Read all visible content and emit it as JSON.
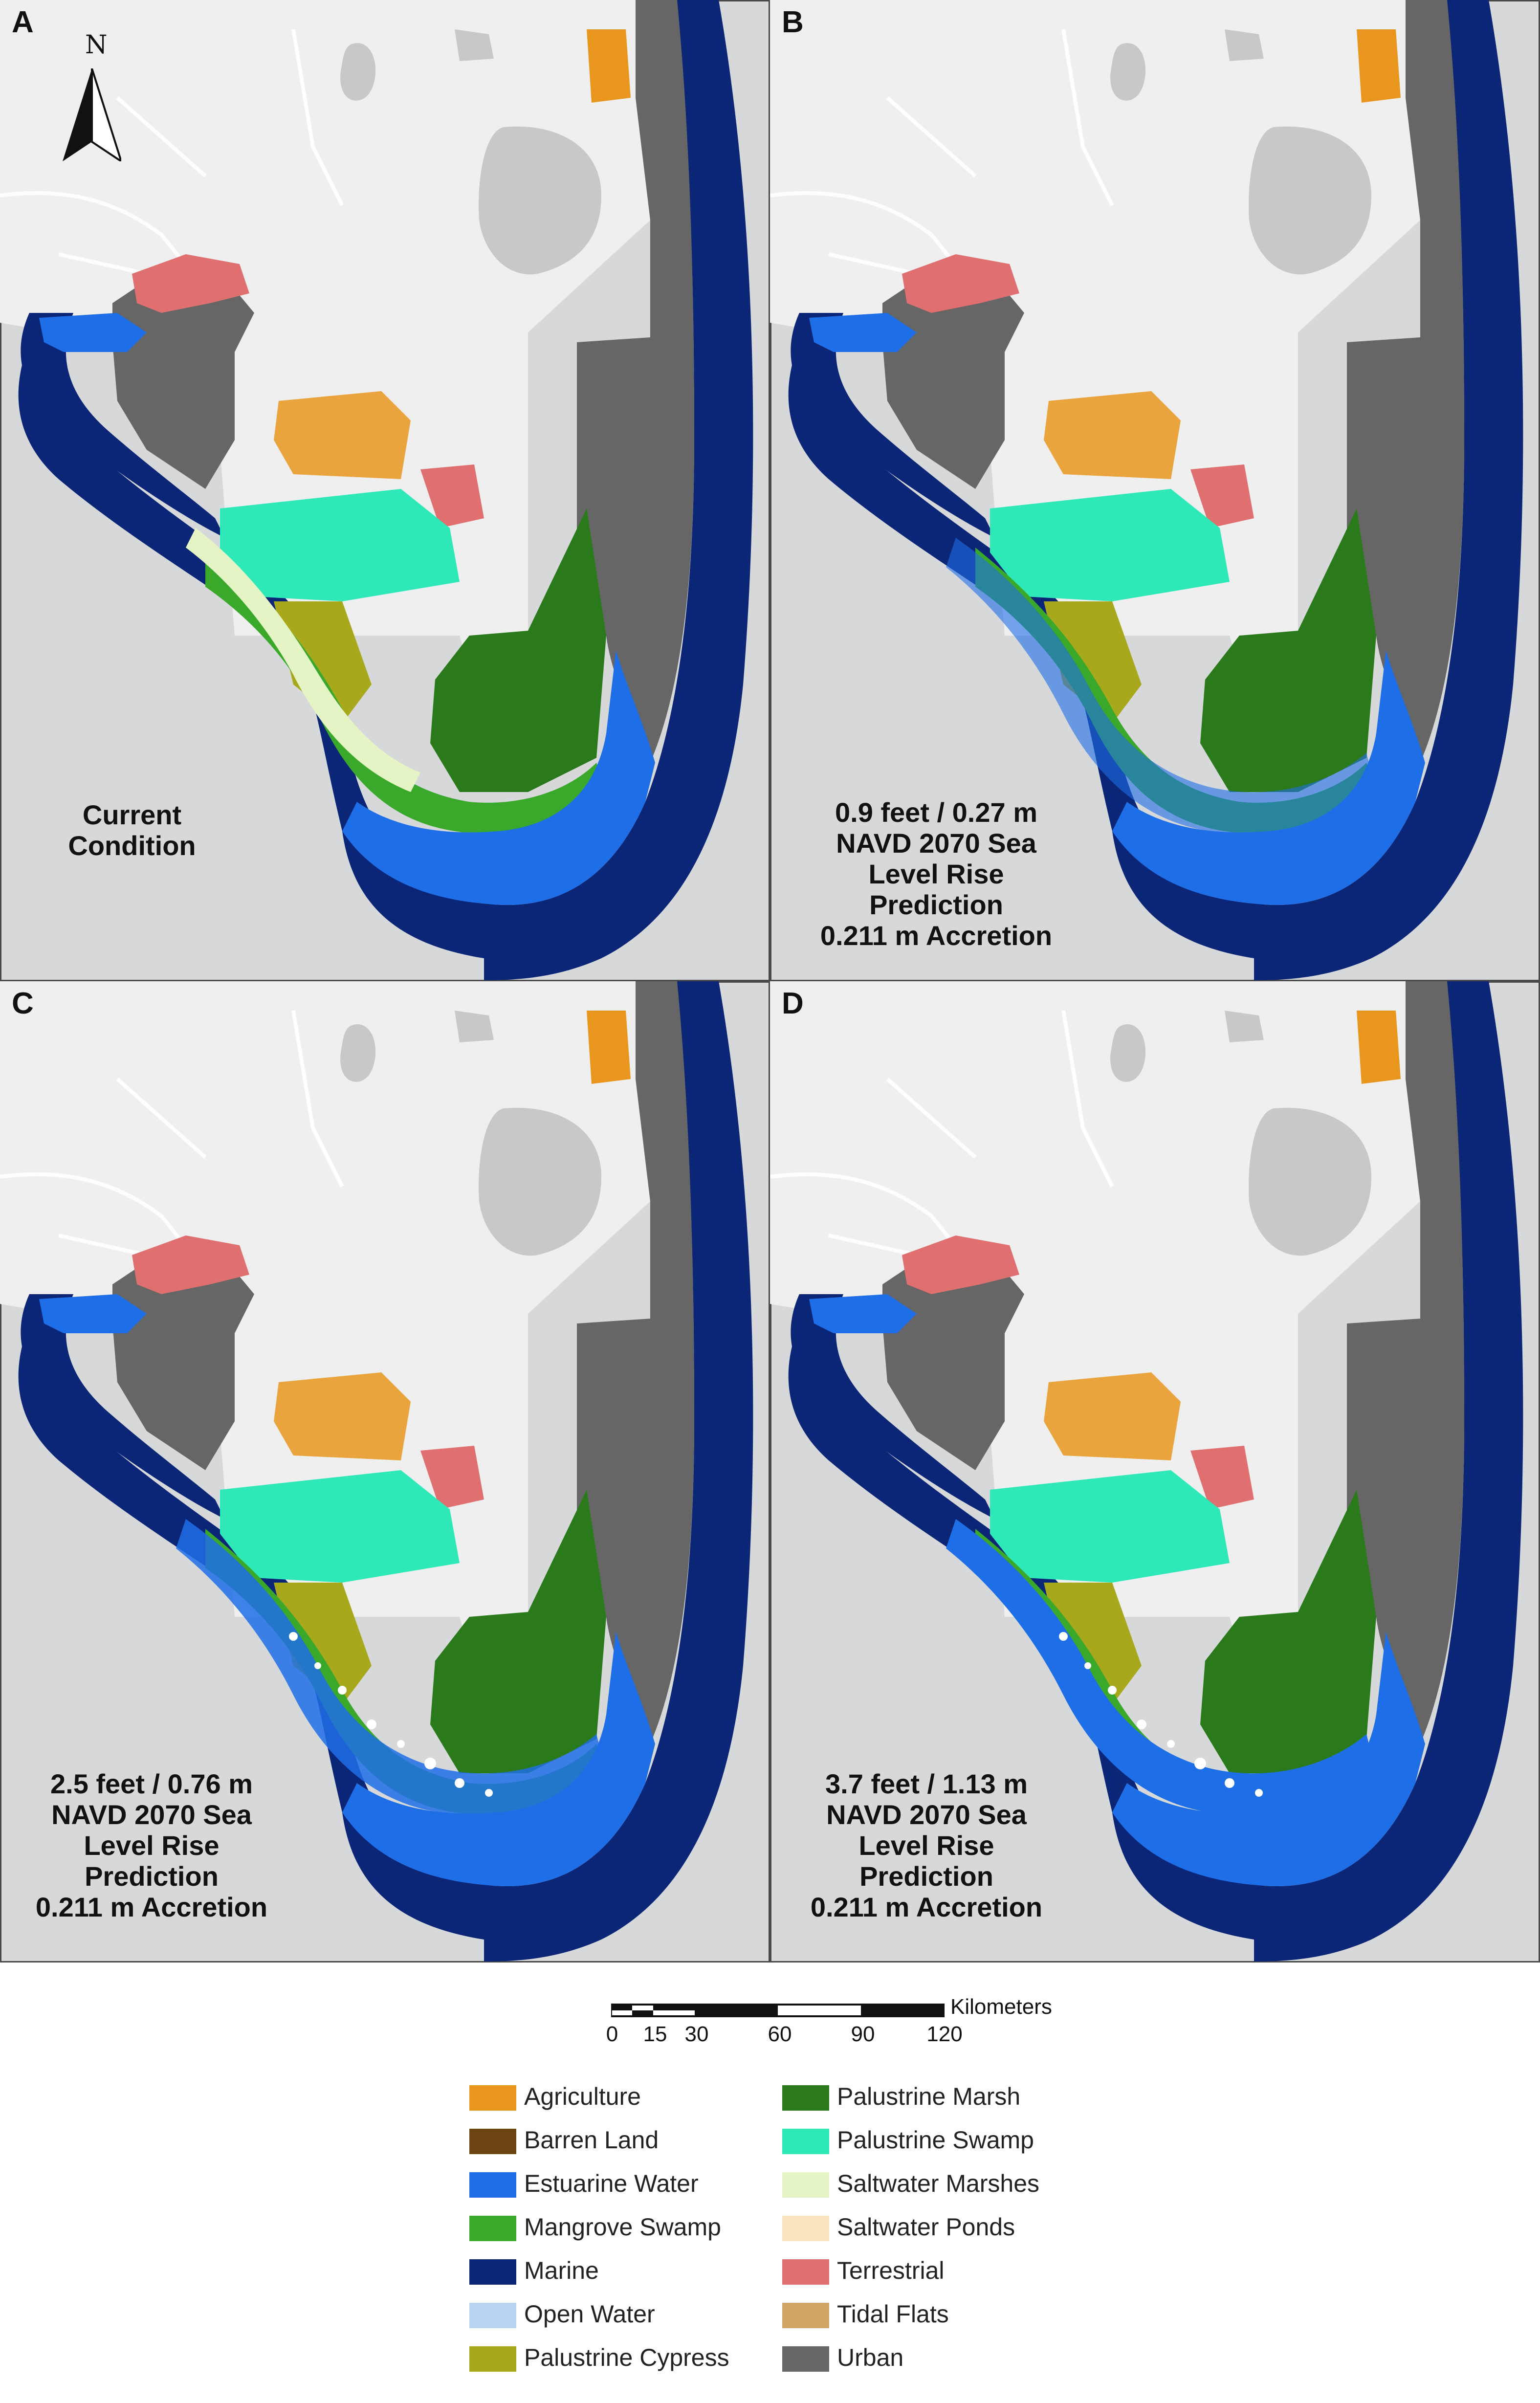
{
  "panels": [
    {
      "label": "A",
      "caption": "Current\nCondition",
      "scenario": "current"
    },
    {
      "label": "B",
      "caption": "0.9 feet / 0.27 m\nNAVD 2070 Sea\nLevel Rise\nPrediction\n0.211 m Accretion",
      "scenario": "slr_0.27"
    },
    {
      "label": "C",
      "caption": "2.5 feet / 0.76 m\nNAVD 2070 Sea\nLevel Rise\nPrediction\n0.211 m Accretion",
      "scenario": "slr_0.76"
    },
    {
      "label": "D",
      "caption": "3.7 feet / 1.13 m\nNAVD 2070 Sea\nLevel Rise\nPrediction\n0.211 m Accretion",
      "scenario": "slr_1.13"
    }
  ],
  "north_arrow": {
    "letter": "N"
  },
  "scale_bar": {
    "unit": "Kilometers",
    "ticks": [
      "0",
      "15",
      "30",
      "60",
      "90",
      "120"
    ]
  },
  "legend": {
    "items": [
      {
        "label": "Agriculture",
        "color": "#e8961e"
      },
      {
        "label": "Barren Land",
        "color": "#6b4412"
      },
      {
        "label": "Estuarine Water",
        "color": "#1e6ee8"
      },
      {
        "label": "Mangrove Swamp",
        "color": "#3aa82a"
      },
      {
        "label": "Marine",
        "color": "#0c2677"
      },
      {
        "label": "Open Water",
        "color": "#b8d2f2"
      },
      {
        "label": "Palustrine Cypress",
        "color": "#a8a81c"
      },
      {
        "label": "Palustrine Marsh",
        "color": "#2a7a1c"
      },
      {
        "label": "Palustrine Swamp",
        "color": "#2ee8b8"
      },
      {
        "label": "Saltwater Marshes",
        "color": "#e4f4c4"
      },
      {
        "label": "Saltwater Ponds",
        "color": "#fae4c0"
      },
      {
        "label": "Terrestrial",
        "color": "#e07070"
      },
      {
        "label": "Tidal Flats",
        "color": "#d2a464"
      },
      {
        "label": "Urban",
        "color": "#666666"
      }
    ]
  },
  "colors": {
    "background": "#d6d8da",
    "land": "#efefef",
    "lake": "#c8c8c8"
  }
}
